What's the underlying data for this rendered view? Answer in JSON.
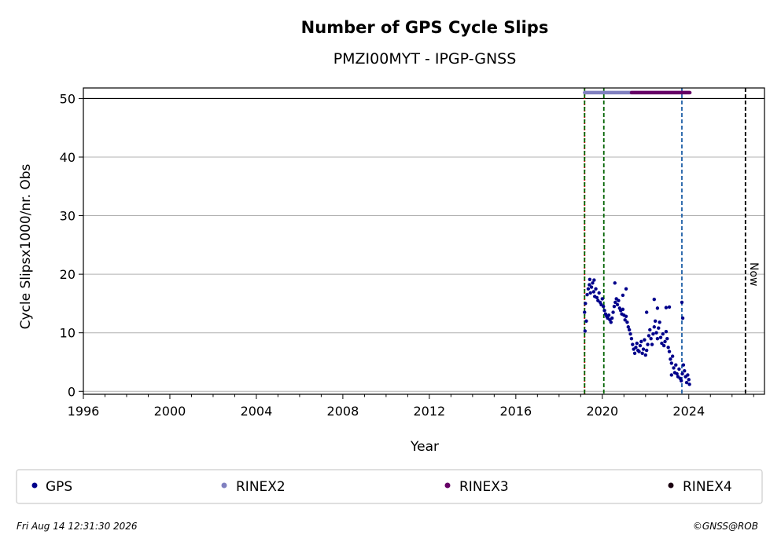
{
  "chart_data": {
    "type": "scatter",
    "title": "Number of GPS Cycle Slips",
    "subtitle": "PMZI00MYT - IPGP-GNSS",
    "xlabel": "Year",
    "ylabel": "Cycle Slipsx1000/nr. Obs",
    "xlim": [
      1996.0,
      2027.5
    ],
    "ylim": [
      -0.5,
      51.8
    ],
    "x_ticks": [
      1996,
      2000,
      2004,
      2008,
      2012,
      2016,
      2020,
      2024
    ],
    "x_tick_labels": [
      "1996",
      "2000",
      "2004",
      "2008",
      "2012",
      "2016",
      "2020",
      "2024"
    ],
    "y_ticks": [
      0,
      10,
      20,
      30,
      40,
      50
    ],
    "y_tick_labels": [
      "0",
      "10",
      "20",
      "30",
      "40",
      "50"
    ],
    "grid": "y",
    "hline": 50,
    "vlines": [
      {
        "x": 2019.18,
        "color": "#cc0000",
        "style": "dotted"
      },
      {
        "x": 2019.18,
        "color": "#006400",
        "style": "dashed"
      },
      {
        "x": 2020.07,
        "color": "#006400",
        "style": "dashed"
      },
      {
        "x": 2023.68,
        "color": "#1f5fa8",
        "style": "dashed"
      },
      {
        "x": 2026.62,
        "color": "#000000",
        "style": "dashed",
        "label": "Now"
      }
    ],
    "series": [
      {
        "name": "GPS",
        "color": "#00008b",
        "points": [
          [
            2019.18,
            13.5
          ],
          [
            2019.22,
            15.0
          ],
          [
            2019.26,
            12.0
          ],
          [
            2019.3,
            16.5
          ],
          [
            2019.35,
            17.5
          ],
          [
            2019.4,
            18.2
          ],
          [
            2019.45,
            16.8
          ],
          [
            2019.5,
            17.8
          ],
          [
            2019.55,
            18.5
          ],
          [
            2019.6,
            17.0
          ],
          [
            2019.65,
            16.2
          ],
          [
            2019.7,
            17.5
          ],
          [
            2019.75,
            16.0
          ],
          [
            2019.8,
            15.5
          ],
          [
            2019.85,
            16.8
          ],
          [
            2019.9,
            15.2
          ],
          [
            2019.95,
            14.8
          ],
          [
            2020.0,
            15.8
          ],
          [
            2020.05,
            14.5
          ],
          [
            2020.1,
            13.8
          ],
          [
            2020.15,
            13.2
          ],
          [
            2020.2,
            12.8
          ],
          [
            2020.25,
            12.5
          ],
          [
            2020.3,
            13.0
          ],
          [
            2020.35,
            12.2
          ],
          [
            2020.4,
            11.8
          ],
          [
            2020.45,
            12.5
          ],
          [
            2020.5,
            13.5
          ],
          [
            2020.55,
            14.5
          ],
          [
            2020.6,
            15.2
          ],
          [
            2020.65,
            15.8
          ],
          [
            2020.7,
            14.8
          ],
          [
            2020.75,
            15.5
          ],
          [
            2020.8,
            14.2
          ],
          [
            2020.85,
            13.8
          ],
          [
            2020.9,
            13.2
          ],
          [
            2020.95,
            14.0
          ],
          [
            2021.0,
            13.0
          ],
          [
            2021.05,
            12.2
          ],
          [
            2021.1,
            12.8
          ],
          [
            2021.15,
            11.8
          ],
          [
            2021.2,
            11.0
          ],
          [
            2021.25,
            10.5
          ],
          [
            2021.3,
            9.8
          ],
          [
            2021.35,
            9.0
          ],
          [
            2021.4,
            8.0
          ],
          [
            2021.45,
            7.2
          ],
          [
            2021.5,
            6.5
          ],
          [
            2021.55,
            7.5
          ],
          [
            2021.6,
            8.2
          ],
          [
            2021.65,
            7.0
          ],
          [
            2021.7,
            6.8
          ],
          [
            2021.75,
            7.8
          ],
          [
            2021.8,
            8.5
          ],
          [
            2021.85,
            6.5
          ],
          [
            2021.9,
            7.2
          ],
          [
            2021.95,
            8.8
          ],
          [
            2022.0,
            6.2
          ],
          [
            2022.05,
            7.0
          ],
          [
            2022.1,
            8.0
          ],
          [
            2022.15,
            9.5
          ],
          [
            2022.2,
            10.5
          ],
          [
            2022.25,
            9.0
          ],
          [
            2022.3,
            8.0
          ],
          [
            2022.35,
            9.8
          ],
          [
            2022.4,
            11.0
          ],
          [
            2022.45,
            12.0
          ],
          [
            2022.5,
            10.0
          ],
          [
            2022.55,
            9.0
          ],
          [
            2022.6,
            10.8
          ],
          [
            2022.65,
            11.8
          ],
          [
            2022.7,
            9.2
          ],
          [
            2022.75,
            8.2
          ],
          [
            2022.8,
            9.8
          ],
          [
            2022.85,
            7.8
          ],
          [
            2022.9,
            8.5
          ],
          [
            2022.95,
            10.2
          ],
          [
            2023.0,
            9.0
          ],
          [
            2023.05,
            7.5
          ],
          [
            2023.1,
            6.8
          ],
          [
            2023.15,
            5.5
          ],
          [
            2023.2,
            4.8
          ],
          [
            2023.25,
            6.0
          ],
          [
            2023.3,
            4.0
          ],
          [
            2023.35,
            3.2
          ],
          [
            2023.4,
            4.5
          ],
          [
            2023.45,
            3.0
          ],
          [
            2023.5,
            2.5
          ],
          [
            2023.55,
            3.8
          ],
          [
            2023.6,
            2.2
          ],
          [
            2023.65,
            1.8
          ],
          [
            2023.7,
            3.0
          ],
          [
            2023.75,
            4.5
          ],
          [
            2023.8,
            3.5
          ],
          [
            2023.85,
            2.5
          ],
          [
            2023.9,
            1.5
          ],
          [
            2023.95,
            2.8
          ],
          [
            2024.0,
            2.0
          ],
          [
            2024.03,
            1.2
          ],
          [
            2019.2,
            10.3
          ],
          [
            2019.42,
            19.1
          ],
          [
            2019.62,
            19.0
          ],
          [
            2020.58,
            18.5
          ],
          [
            2022.4,
            15.7
          ],
          [
            2022.05,
            13.5
          ],
          [
            2022.55,
            14.2
          ],
          [
            2022.95,
            14.3
          ],
          [
            2023.1,
            14.4
          ],
          [
            2023.68,
            15.2
          ],
          [
            2023.72,
            12.5
          ],
          [
            2023.2,
            2.8
          ],
          [
            2021.1,
            17.5
          ],
          [
            2020.95,
            16.4
          ]
        ]
      },
      {
        "name": "RINEX2",
        "color": "#8080c0",
        "range": [
          2019.18,
          2021.35
        ],
        "y": 51
      },
      {
        "name": "RINEX3",
        "color": "#660066",
        "range": [
          2021.35,
          2024.05
        ],
        "y": 51
      },
      {
        "name": "RINEX4",
        "color": "#1a0010",
        "points": []
      }
    ],
    "legend_position": "bottom"
  },
  "legend": [
    {
      "label": "GPS",
      "color": "#00008b"
    },
    {
      "label": "RINEX2",
      "color": "#8080c0"
    },
    {
      "label": "RINEX3",
      "color": "#660066"
    },
    {
      "label": "RINEX4",
      "color": "#1a0010"
    }
  ],
  "now_label": "Now",
  "footer": {
    "timestamp": "Fri Aug 14 12:31:30 2026",
    "credit": "©GNSS@ROB"
  }
}
